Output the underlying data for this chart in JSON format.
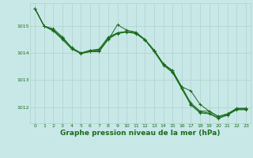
{
  "background_color": "#c8e8e8",
  "grid_color": "#b0d0d0",
  "line_color": "#1a6b1a",
  "marker_color": "#1a6b1a",
  "xlabel": "Graphe pression niveau de la mer (hPa)",
  "xlabel_fontsize": 6.5,
  "xlim": [
    -0.5,
    23.5
  ],
  "ylim": [
    1011.4,
    1015.85
  ],
  "yticks": [
    1012,
    1013,
    1014,
    1015
  ],
  "xticks": [
    0,
    1,
    2,
    3,
    4,
    5,
    6,
    7,
    8,
    9,
    10,
    11,
    12,
    13,
    14,
    15,
    16,
    17,
    18,
    19,
    20,
    21,
    22,
    23
  ],
  "s1": [
    1015.65,
    1015.0,
    1014.9,
    1014.6,
    1014.2,
    1014.0,
    1014.1,
    1014.15,
    1014.6,
    1014.75,
    1014.8,
    1014.75,
    1014.5,
    1014.1,
    1013.6,
    1013.35,
    1012.75,
    1012.15,
    1011.85,
    1011.85,
    1011.65,
    1011.75,
    1011.95,
    1011.95
  ],
  "s2": [
    1015.65,
    1015.0,
    1014.85,
    1014.55,
    1014.2,
    1014.0,
    1014.1,
    1014.1,
    1014.5,
    1015.05,
    1014.85,
    1014.78,
    1014.5,
    1014.1,
    1013.6,
    1013.35,
    1012.75,
    1012.6,
    1012.1,
    1011.85,
    1011.65,
    1011.75,
    1011.95,
    1011.95
  ],
  "s3": [
    1015.65,
    1015.0,
    1014.85,
    1014.55,
    1014.2,
    1014.0,
    1014.05,
    1014.1,
    1014.55,
    1014.75,
    1014.8,
    1014.75,
    1014.5,
    1014.1,
    1013.6,
    1013.3,
    1012.7,
    1012.1,
    1011.82,
    1011.78,
    1011.6,
    1011.72,
    1011.92,
    1011.92
  ],
  "s4": [
    1015.65,
    1015.0,
    1014.82,
    1014.5,
    1014.15,
    1013.98,
    1014.05,
    1014.05,
    1014.52,
    1014.72,
    1014.78,
    1014.72,
    1014.48,
    1014.05,
    1013.55,
    1013.28,
    1012.68,
    1012.08,
    1011.78,
    1011.75,
    1011.58,
    1011.7,
    1011.9,
    1011.9
  ]
}
